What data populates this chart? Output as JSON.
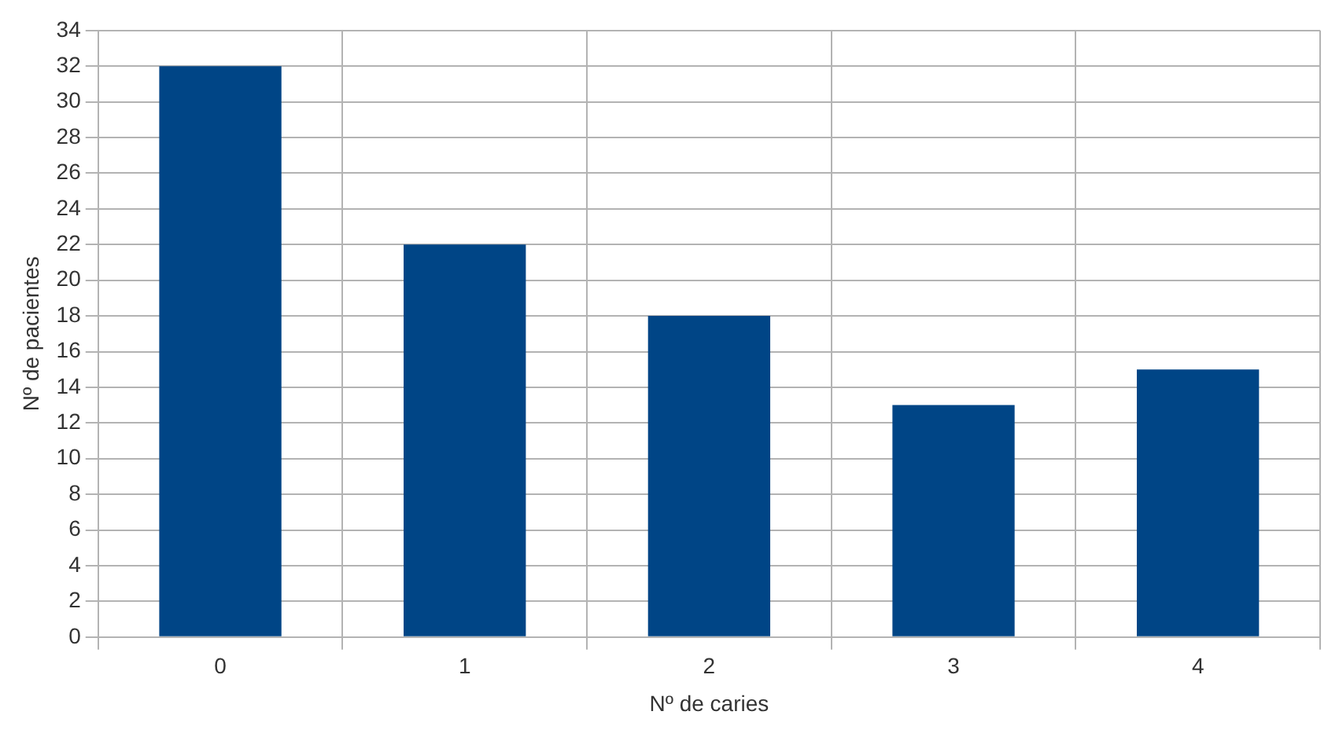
{
  "chart_data": {
    "type": "bar",
    "xlabel": "Nº de caries",
    "ylabel": "Nº de pacientes",
    "categories": [
      "0",
      "1",
      "2",
      "3",
      "4"
    ],
    "values": [
      32,
      22,
      18,
      13,
      15
    ],
    "color": "#004586",
    "ylim": [
      0,
      34
    ],
    "yticks": [
      0,
      2,
      4,
      6,
      8,
      10,
      12,
      14,
      16,
      18,
      20,
      22,
      24,
      26,
      28,
      30,
      32,
      34
    ],
    "grid": true,
    "legend": false
  }
}
